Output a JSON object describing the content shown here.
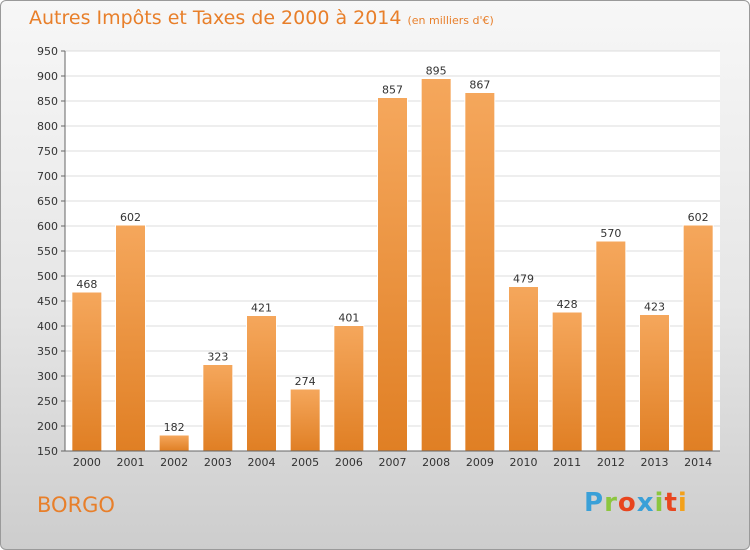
{
  "title": "Autres Impôts et Taxes de 2000 à 2014",
  "title_unit": "(en milliers d'€)",
  "commune": "BORGO",
  "logo": {
    "text": "Proxiti",
    "letter_colors": [
      "#3aa0d8",
      "#8cc63e",
      "#e8451e",
      "#3aa0d8",
      "#8cc63e",
      "#e8451e",
      "#f3a11b"
    ]
  },
  "colors": {
    "bar_light": "#f5a75c",
    "bar_dark": "#e07f24",
    "title": "#e87f2a",
    "grid": "#dcdcdc"
  },
  "chart_data": {
    "type": "bar",
    "categories": [
      "2000",
      "2001",
      "2002",
      "2003",
      "2004",
      "2005",
      "2006",
      "2007",
      "2008",
      "2009",
      "2010",
      "2011",
      "2012",
      "2013",
      "2014"
    ],
    "values": [
      468,
      602,
      182,
      323,
      421,
      274,
      401,
      857,
      895,
      867,
      479,
      428,
      570,
      423,
      602
    ],
    "ylim": [
      150,
      950
    ],
    "yticks": [
      150,
      200,
      250,
      300,
      350,
      400,
      450,
      500,
      550,
      600,
      650,
      700,
      750,
      800,
      850,
      900,
      950
    ],
    "grid": true,
    "legend": "none"
  }
}
